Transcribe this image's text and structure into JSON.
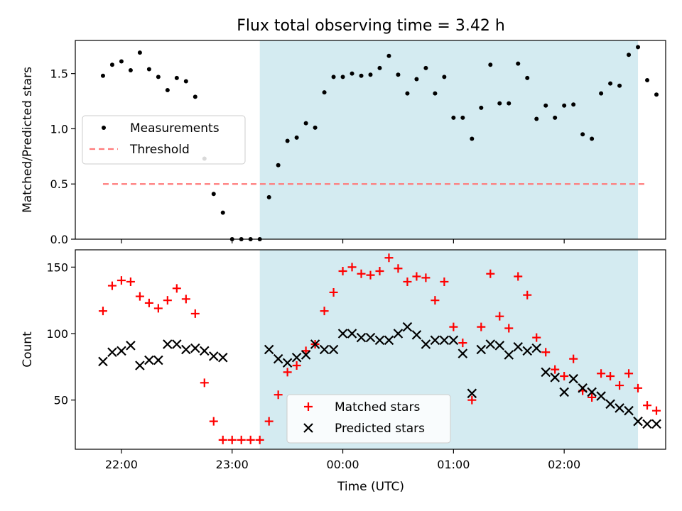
{
  "chart_data": {
    "title": "Flux total observing time = 3.42 h",
    "type": "scatter",
    "shaded_region": {
      "x_start": "23:15",
      "x_end": "02:40",
      "color": "#d4ebf1"
    },
    "x_axis": {
      "label": "Time (UTC)",
      "range": [
        "21:35",
        "02:55"
      ],
      "ticks": [
        "22:00",
        "23:00",
        "00:00",
        "01:00",
        "02:00"
      ]
    },
    "panels": [
      {
        "ylabel": "Matched/Predicted stars",
        "ylim": [
          0,
          1.8
        ],
        "yticks": [
          "0.0",
          "0.5",
          "1.0",
          "1.5"
        ],
        "legend_position": "center-left",
        "series": [
          {
            "name": "Measurements",
            "kind": "scatter-dot",
            "color": "#000000",
            "points": [
              [
                "21:50",
                1.48
              ],
              [
                "21:55",
                1.58
              ],
              [
                "22:00",
                1.61
              ],
              [
                "22:05",
                1.53
              ],
              [
                "22:10",
                1.69
              ],
              [
                "22:15",
                1.54
              ],
              [
                "22:20",
                1.47
              ],
              [
                "22:25",
                1.35
              ],
              [
                "22:30",
                1.46
              ],
              [
                "22:35",
                1.43
              ],
              [
                "22:40",
                1.29
              ],
              [
                "22:45",
                0.73
              ],
              [
                "22:50",
                0.41
              ],
              [
                "22:55",
                0.24
              ],
              [
                "23:00",
                0.0
              ],
              [
                "23:05",
                0.0
              ],
              [
                "23:10",
                0.0
              ],
              [
                "23:15",
                0.0
              ],
              [
                "23:20",
                0.38
              ],
              [
                "23:25",
                0.67
              ],
              [
                "23:30",
                0.89
              ],
              [
                "23:35",
                0.92
              ],
              [
                "23:40",
                1.05
              ],
              [
                "23:45",
                1.01
              ],
              [
                "23:50",
                1.33
              ],
              [
                "23:55",
                1.47
              ],
              [
                "00:00",
                1.47
              ],
              [
                "00:05",
                1.5
              ],
              [
                "00:10",
                1.48
              ],
              [
                "00:15",
                1.49
              ],
              [
                "00:20",
                1.55
              ],
              [
                "00:25",
                1.66
              ],
              [
                "00:30",
                1.49
              ],
              [
                "00:35",
                1.32
              ],
              [
                "00:40",
                1.45
              ],
              [
                "00:45",
                1.55
              ],
              [
                "00:50",
                1.32
              ],
              [
                "00:55",
                1.47
              ],
              [
                "01:00",
                1.1
              ],
              [
                "01:05",
                1.1
              ],
              [
                "01:10",
                0.91
              ],
              [
                "01:15",
                1.19
              ],
              [
                "01:20",
                1.58
              ],
              [
                "01:25",
                1.23
              ],
              [
                "01:30",
                1.23
              ],
              [
                "01:35",
                1.59
              ],
              [
                "01:40",
                1.46
              ],
              [
                "01:45",
                1.09
              ],
              [
                "01:50",
                1.21
              ],
              [
                "01:55",
                1.1
              ],
              [
                "02:00",
                1.21
              ],
              [
                "02:05",
                1.22
              ],
              [
                "02:10",
                0.95
              ],
              [
                "02:15",
                0.91
              ],
              [
                "02:20",
                1.32
              ],
              [
                "02:25",
                1.41
              ],
              [
                "02:30",
                1.39
              ],
              [
                "02:35",
                1.67
              ],
              [
                "02:40",
                1.74
              ],
              [
                "02:45",
                1.44
              ],
              [
                "02:50",
                1.31
              ]
            ]
          },
          {
            "name": "Threshold",
            "kind": "dashed-line",
            "color": "#ff7a7a",
            "x_range": [
              "21:50",
              "02:45"
            ],
            "y": 0.5
          }
        ]
      },
      {
        "ylabel": "Count",
        "ylim": [
          13,
          163
        ],
        "yticks": [
          "50",
          "100",
          "150"
        ],
        "legend_position": "lower-center",
        "series": [
          {
            "name": "Matched stars",
            "kind": "plus",
            "color": "#ff0000",
            "points": [
              [
                "21:50",
                117
              ],
              [
                "21:55",
                136
              ],
              [
                "22:00",
                140
              ],
              [
                "22:05",
                139
              ],
              [
                "22:10",
                128
              ],
              [
                "22:15",
                123
              ],
              [
                "22:20",
                119
              ],
              [
                "22:25",
                125
              ],
              [
                "22:30",
                134
              ],
              [
                "22:35",
                126
              ],
              [
                "22:40",
                115
              ],
              [
                "22:45",
                63
              ],
              [
                "22:50",
                34
              ],
              [
                "22:55",
                20
              ],
              [
                "23:00",
                20
              ],
              [
                "23:05",
                20
              ],
              [
                "23:10",
                20
              ],
              [
                "23:15",
                20
              ],
              [
                "23:20",
                34
              ],
              [
                "23:25",
                54
              ],
              [
                "23:30",
                71
              ],
              [
                "23:35",
                76
              ],
              [
                "23:40",
                87
              ],
              [
                "23:45",
                92
              ],
              [
                "23:50",
                117
              ],
              [
                "23:55",
                131
              ],
              [
                "00:00",
                147
              ],
              [
                "00:05",
                150
              ],
              [
                "00:10",
                145
              ],
              [
                "00:15",
                144
              ],
              [
                "00:20",
                147
              ],
              [
                "00:25",
                157
              ],
              [
                "00:30",
                149
              ],
              [
                "00:35",
                139
              ],
              [
                "00:40",
                143
              ],
              [
                "00:45",
                142
              ],
              [
                "00:50",
                125
              ],
              [
                "00:55",
                139
              ],
              [
                "01:00",
                105
              ],
              [
                "01:05",
                93
              ],
              [
                "01:10",
                50
              ],
              [
                "01:15",
                105
              ],
              [
                "01:20",
                145
              ],
              [
                "01:25",
                113
              ],
              [
                "01:30",
                104
              ],
              [
                "01:35",
                143
              ],
              [
                "01:40",
                129
              ],
              [
                "01:45",
                97
              ],
              [
                "01:50",
                86
              ],
              [
                "01:55",
                73
              ],
              [
                "02:00",
                68
              ],
              [
                "02:05",
                81
              ],
              [
                "02:10",
                57
              ],
              [
                "02:15",
                52
              ],
              [
                "02:20",
                70
              ],
              [
                "02:25",
                68
              ],
              [
                "02:30",
                61
              ],
              [
                "02:35",
                70
              ],
              [
                "02:40",
                59
              ],
              [
                "02:45",
                46
              ],
              [
                "02:50",
                42
              ]
            ]
          },
          {
            "name": "Predicted stars",
            "kind": "cross",
            "color": "#000000",
            "points": [
              [
                "21:50",
                79
              ],
              [
                "21:55",
                86
              ],
              [
                "22:00",
                87
              ],
              [
                "22:05",
                91
              ],
              [
                "22:10",
                76
              ],
              [
                "22:15",
                80
              ],
              [
                "22:20",
                80
              ],
              [
                "22:25",
                92
              ],
              [
                "22:30",
                92
              ],
              [
                "22:35",
                88
              ],
              [
                "22:40",
                89
              ],
              [
                "22:45",
                87
              ],
              [
                "22:50",
                83
              ],
              [
                "22:55",
                82
              ],
              [
                "23:20",
                88
              ],
              [
                "23:25",
                81
              ],
              [
                "23:30",
                78
              ],
              [
                "23:35",
                82
              ],
              [
                "23:40",
                84
              ],
              [
                "23:45",
                92
              ],
              [
                "23:50",
                88
              ],
              [
                "23:55",
                88
              ],
              [
                "00:00",
                100
              ],
              [
                "00:05",
                100
              ],
              [
                "00:10",
                97
              ],
              [
                "00:15",
                97
              ],
              [
                "00:20",
                95
              ],
              [
                "00:25",
                95
              ],
              [
                "00:30",
                100
              ],
              [
                "00:35",
                105
              ],
              [
                "00:40",
                99
              ],
              [
                "00:45",
                92
              ],
              [
                "00:50",
                95
              ],
              [
                "00:55",
                95
              ],
              [
                "01:00",
                95
              ],
              [
                "01:05",
                85
              ],
              [
                "01:10",
                55
              ],
              [
                "01:15",
                88
              ],
              [
                "01:20",
                92
              ],
              [
                "01:25",
                91
              ],
              [
                "01:30",
                84
              ],
              [
                "01:35",
                90
              ],
              [
                "01:40",
                87
              ],
              [
                "01:45",
                89
              ],
              [
                "01:50",
                71
              ],
              [
                "01:55",
                67
              ],
              [
                "02:00",
                56
              ],
              [
                "02:05",
                66
              ],
              [
                "02:10",
                59
              ],
              [
                "02:15",
                56
              ],
              [
                "02:20",
                53
              ],
              [
                "02:25",
                47
              ],
              [
                "02:30",
                44
              ],
              [
                "02:35",
                42
              ],
              [
                "02:40",
                34
              ],
              [
                "02:45",
                32
              ],
              [
                "02:50",
                32
              ]
            ]
          }
        ]
      }
    ]
  }
}
